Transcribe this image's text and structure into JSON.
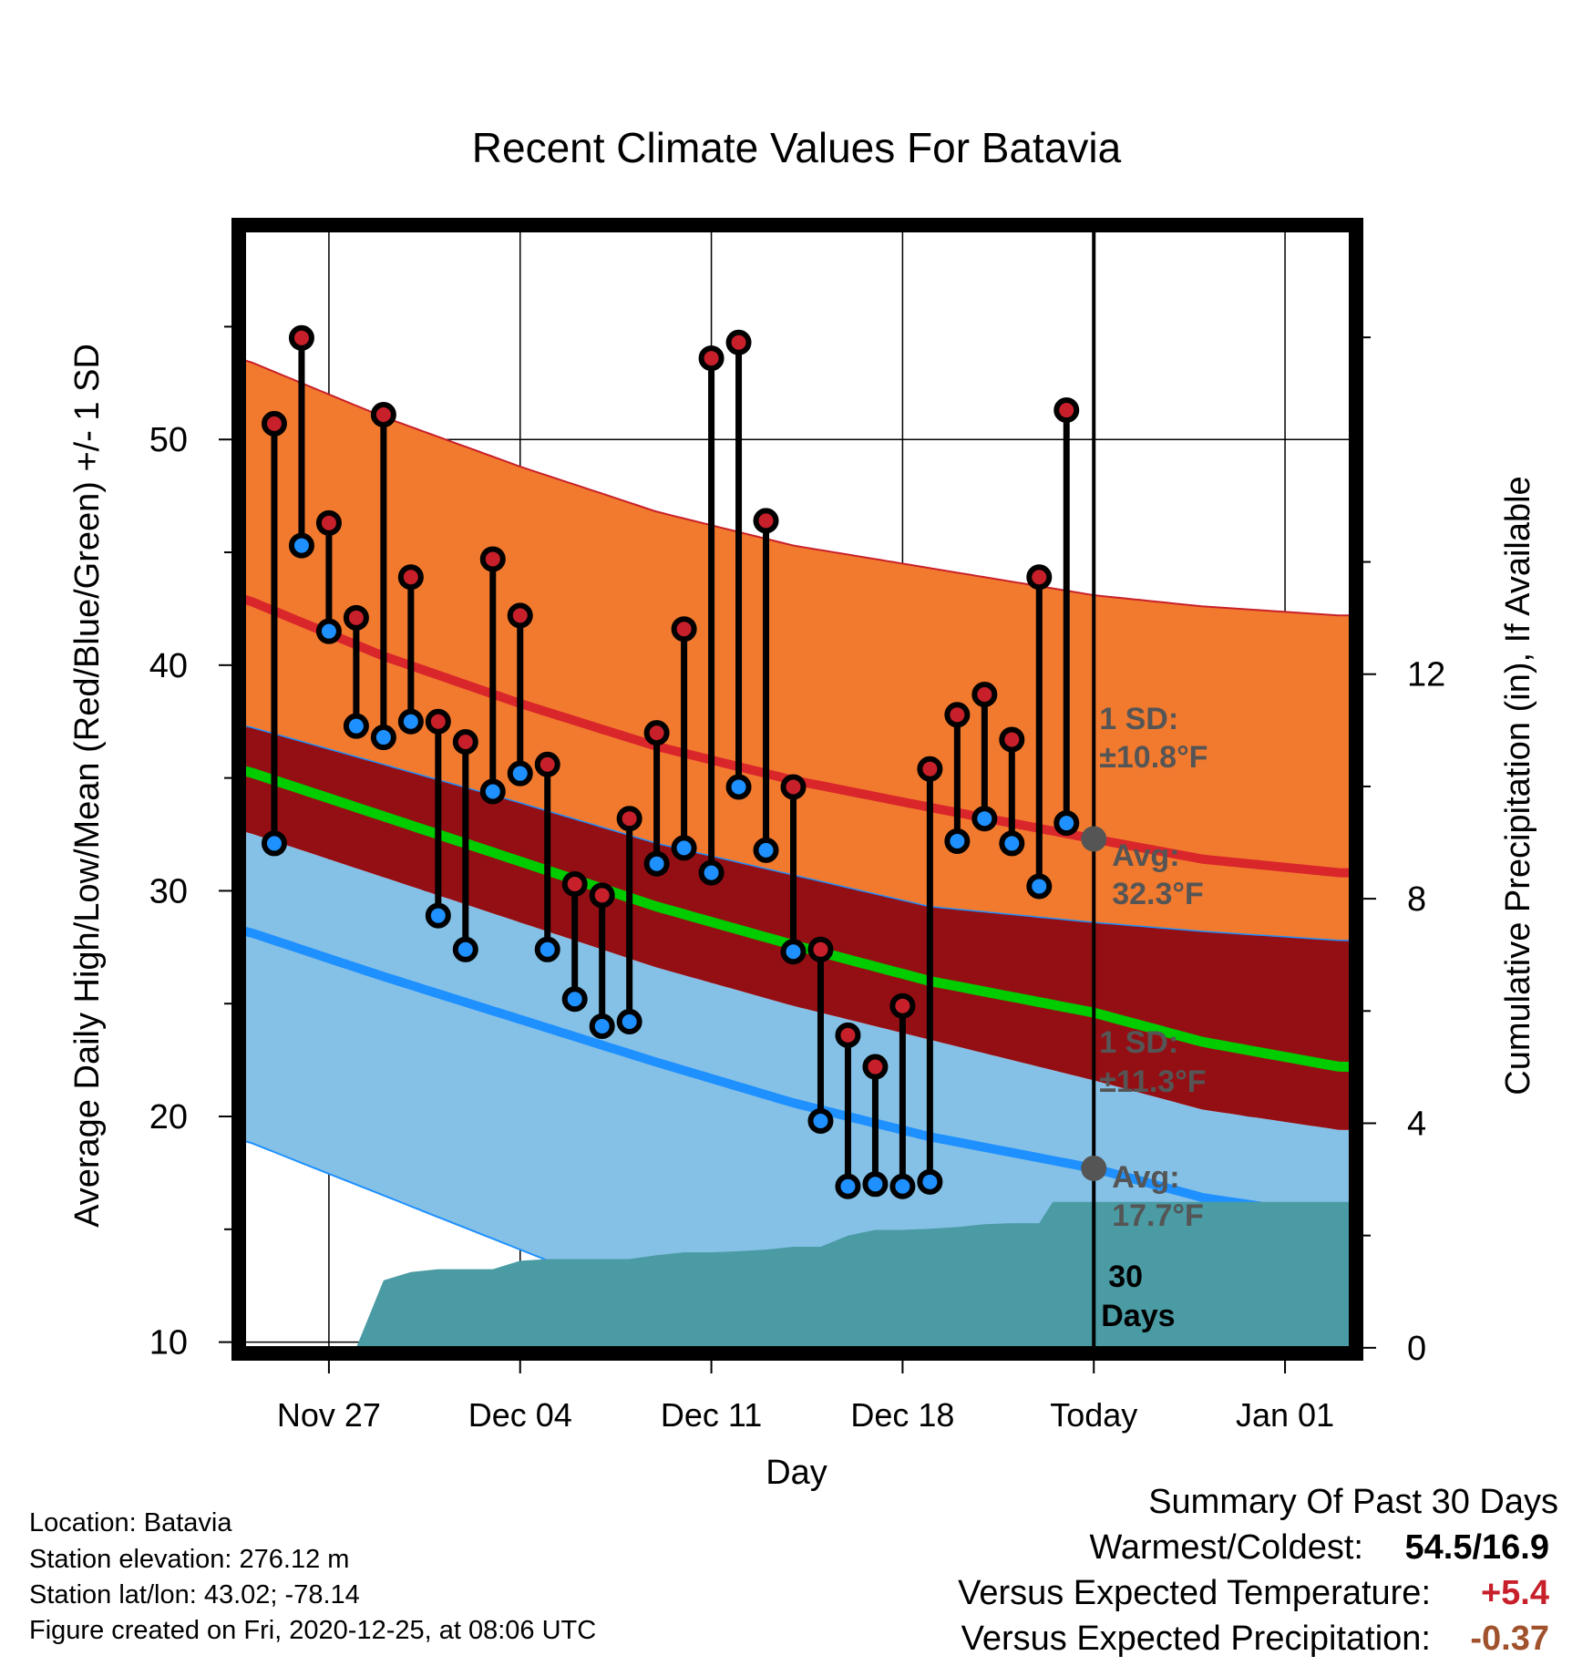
{
  "chart_data": {
    "type": "line",
    "title": "Recent Climate Values For Batavia",
    "xlabel": "Day",
    "ylabel": "Average Daily High/Low/Mean (Red/Blue/Green) +/- 1 SD",
    "y2label": "Cumulative Precipitation (in), If Available",
    "x_tick_labels": [
      "Nov 27",
      "Dec 04",
      "Dec 11",
      "Dec 18",
      "Today",
      "Jan 01"
    ],
    "x_tick_days": [
      3,
      10,
      17,
      24,
      31,
      38
    ],
    "y_ticks": [
      10,
      20,
      30,
      40,
      50
    ],
    "y2_ticks": [
      0,
      4,
      8,
      12
    ],
    "ylim": [
      9.5,
      59.5
    ],
    "y2lim": [
      -0.1,
      20
    ],
    "xlim": [
      -0.3,
      40.6
    ],
    "today_day": 31,
    "grid": true,
    "normals": {
      "days": [
        0,
        5,
        10,
        15,
        20,
        25,
        31,
        35,
        40
      ],
      "high_avg": [
        42.9,
        40.4,
        38.3,
        36.4,
        34.9,
        33.7,
        32.3,
        31.4,
        30.8
      ],
      "high_upper": [
        53.5,
        51.0,
        48.8,
        46.8,
        45.3,
        44.3,
        43.1,
        42.6,
        42.2
      ],
      "high_lower": [
        37.3,
        35.6,
        33.9,
        32.1,
        30.7,
        29.3,
        28.6,
        28.2,
        27.8
      ],
      "low_avg": [
        28.2,
        26.2,
        24.3,
        22.4,
        20.6,
        19.1,
        17.7,
        16.4,
        15.5
      ],
      "low_upper": [
        32.6,
        30.6,
        28.6,
        26.6,
        24.9,
        23.4,
        21.6,
        20.3,
        19.4
      ],
      "low_lower": [
        18.9,
        16.5,
        14.1,
        11.7,
        9.5,
        9.5,
        9.5,
        9.5,
        9.5
      ],
      "mean_avg": [
        35.3,
        33.3,
        31.3,
        29.3,
        27.6,
        26.0,
        24.6,
        23.3,
        22.2
      ]
    },
    "annotations": {
      "high_sd": "1 SD:",
      "high_sd_value": "±10.8°F",
      "high_avg_label": "Avg:",
      "high_avg_value": "32.3°F",
      "low_sd": "1 SD:",
      "low_sd_value": "±11.3°F",
      "low_avg_label": "Avg:",
      "low_avg_value": "17.7°F",
      "period": "30",
      "period_unit": "Days"
    },
    "series": [
      {
        "name": "High",
        "days": [
          1,
          2,
          3,
          4,
          5,
          6,
          7,
          8,
          9,
          10,
          11,
          12,
          13,
          14,
          15,
          16,
          17,
          18,
          19,
          20,
          21,
          22,
          23,
          24,
          25,
          26,
          27,
          28,
          29,
          30
        ],
        "values": [
          50.7,
          54.5,
          46.3,
          42.1,
          51.1,
          43.9,
          37.5,
          36.6,
          44.7,
          42.2,
          35.6,
          30.3,
          29.8,
          33.2,
          37.0,
          41.6,
          53.6,
          54.3,
          46.4,
          34.6,
          27.4,
          23.6,
          22.2,
          24.9,
          35.4,
          37.8,
          38.7,
          36.7,
          43.9,
          51.3
        ],
        "color": "#c8202a"
      },
      {
        "name": "Low",
        "days": [
          1,
          2,
          3,
          4,
          5,
          6,
          7,
          8,
          9,
          10,
          11,
          12,
          13,
          14,
          15,
          16,
          17,
          18,
          19,
          20,
          21,
          22,
          23,
          24,
          25,
          26,
          27,
          28,
          29,
          30
        ],
        "values": [
          32.1,
          45.3,
          41.5,
          37.3,
          36.8,
          37.5,
          28.9,
          27.4,
          34.4,
          35.2,
          27.4,
          25.2,
          24.0,
          24.2,
          31.2,
          31.9,
          30.8,
          34.6,
          31.8,
          27.3,
          19.8,
          16.9,
          17.0,
          16.9,
          17.1,
          32.2,
          33.2,
          32.1,
          30.2,
          33.0
        ],
        "color": "#1e90ff"
      },
      {
        "name": "Precipitation",
        "days": [
          0,
          4,
          5,
          6,
          7,
          8,
          9,
          10,
          11,
          12,
          13,
          14,
          15,
          16,
          17,
          18,
          19,
          20,
          21,
          22,
          23,
          24,
          25,
          26,
          27,
          28,
          29,
          29.5,
          30,
          31,
          40.6
        ],
        "values": [
          0,
          0,
          1.2,
          1.35,
          1.4,
          1.4,
          1.4,
          1.55,
          1.58,
          1.58,
          1.58,
          1.58,
          1.65,
          1.7,
          1.7,
          1.72,
          1.75,
          1.8,
          1.8,
          2.0,
          2.1,
          2.1,
          2.12,
          2.15,
          2.2,
          2.22,
          2.22,
          2.6,
          2.6,
          2.6,
          2.6
        ],
        "color": "#4a9ba4"
      }
    ]
  },
  "info": {
    "location": "Location: Batavia",
    "elevation": "Station elevation: 276.12 m",
    "latlon": "Station lat/lon: 43.02; -78.14",
    "created": "Figure created on Fri, 2020-12-25, at 08:06 UTC"
  },
  "summary": {
    "title": "Summary Of Past 30 Days",
    "warmest_label": "Warmest/Coldest:",
    "warmest_value": "54.5/16.9",
    "temp_label": "Versus Expected Temperature:",
    "temp_value": "+5.4",
    "precip_label": "Versus Expected Precipitation:",
    "precip_value": "-0.37",
    "temp_color": "#c8202a",
    "precip_color": "#a0522d"
  }
}
